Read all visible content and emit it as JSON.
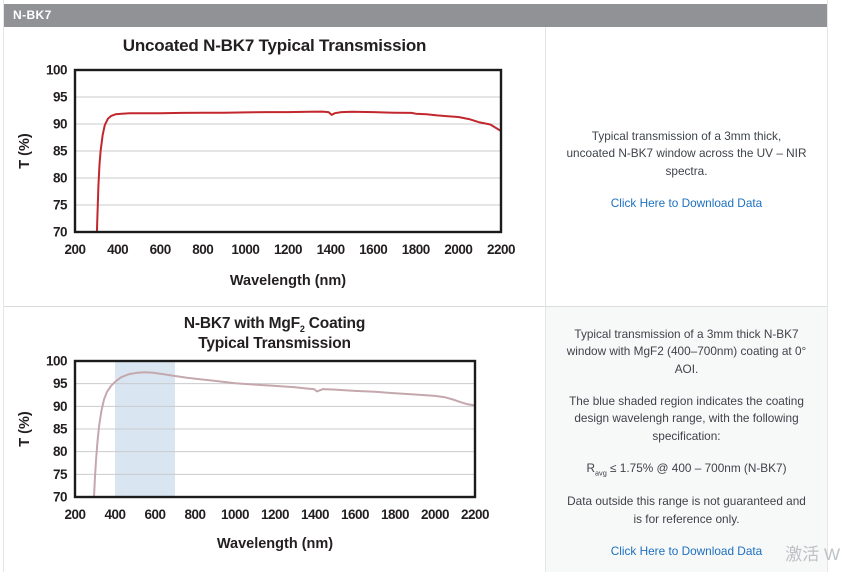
{
  "header": {
    "title": "N-BK7"
  },
  "sections": [
    {
      "description": "Typical transmission of a 3mm thick, uncoated N-BK7 window across the UV – NIR spectra.",
      "link_label": "Click Here to Download Data"
    },
    {
      "description_p1": "Typical transmission of a 3mm thick N-BK7 window with MgF2 (400–700nm) coating at 0° AOI.",
      "description_p2": "The blue shaded region indicates the coating design wavelengh range, with the following specification:",
      "spec": {
        "pre": "R",
        "sub": "avg",
        "post": " ≤ 1.75% @ 400 – 700nm (N-BK7)"
      },
      "description_p3": "Data outside this range is not guaranteed and is for reference only.",
      "link_label": "Click Here to Download Data"
    }
  ],
  "watermark": "激活 W",
  "chart_data": [
    {
      "type": "line",
      "title": "Uncoated N-BK7 Typical Transmission",
      "xlabel": "Wavelength (nm)",
      "ylabel": "T (%)",
      "xlim": [
        200,
        2200
      ],
      "ylim": [
        70,
        100
      ],
      "xticks": [
        200,
        400,
        600,
        800,
        1000,
        1200,
        1400,
        1600,
        1800,
        2000,
        2200
      ],
      "yticks": [
        70,
        75,
        80,
        85,
        90,
        95,
        100
      ],
      "grid": "horizontal",
      "legend": "none",
      "series": [
        {
          "name": "Uncoated N-BK7 transmission",
          "color": "#c2272d",
          "x": [
            303,
            306,
            310,
            315,
            320,
            330,
            340,
            355,
            370,
            390,
            420,
            460,
            520,
            600,
            700,
            800,
            900,
            1000,
            1100,
            1200,
            1300,
            1360,
            1390,
            1405,
            1420,
            1450,
            1500,
            1600,
            1700,
            1780,
            1800,
            1850,
            1900,
            1950,
            2000,
            2050,
            2100,
            2150,
            2200
          ],
          "y": [
            70,
            74,
            78.5,
            82.5,
            85,
            88,
            89.8,
            91.0,
            91.5,
            91.8,
            91.9,
            92.0,
            92.0,
            92.0,
            92.05,
            92.1,
            92.1,
            92.15,
            92.2,
            92.2,
            92.25,
            92.3,
            92.2,
            91.7,
            92.0,
            92.2,
            92.25,
            92.2,
            92.1,
            92.05,
            91.9,
            91.8,
            91.6,
            91.45,
            91.3,
            90.9,
            90.3,
            89.9,
            88.7
          ]
        }
      ]
    },
    {
      "type": "line",
      "title": "N-BK7 with MgF2 Coating Typical Transmission",
      "title_parts": {
        "pre": "N-BK7 with MgF",
        "sub": "2",
        "post": " Coating"
      },
      "title_line2": "Typical Transmission",
      "xlabel": "Wavelength (nm)",
      "ylabel": "T (%)",
      "xlim": [
        200,
        2200
      ],
      "ylim": [
        70,
        100
      ],
      "xticks": [
        200,
        400,
        600,
        800,
        1000,
        1200,
        1400,
        1600,
        1800,
        2000,
        2200
      ],
      "yticks": [
        70,
        75,
        80,
        85,
        90,
        95,
        100
      ],
      "grid": "horizontal",
      "legend": "none",
      "shaded_region": {
        "x": [
          400,
          700
        ],
        "color": "#d9e6f2",
        "label": "coating design wavelength range"
      },
      "series": [
        {
          "name": "N-BK7 with MgF2 coating transmission",
          "color": "#c5a8ae",
          "x": [
            295,
            300,
            305,
            312,
            320,
            332,
            345,
            360,
            380,
            400,
            430,
            470,
            510,
            550,
            590,
            640,
            700,
            760,
            820,
            900,
            1000,
            1100,
            1200,
            1300,
            1370,
            1395,
            1410,
            1440,
            1500,
            1600,
            1700,
            1800,
            1900,
            2000,
            2050,
            2090,
            2130,
            2160,
            2200
          ],
          "y": [
            70,
            74.5,
            78,
            82,
            85.5,
            89,
            91.5,
            93.2,
            94.5,
            95.4,
            96.4,
            97.1,
            97.4,
            97.5,
            97.4,
            97.1,
            96.7,
            96.3,
            96.0,
            95.6,
            95.1,
            94.8,
            94.5,
            94.2,
            93.9,
            93.8,
            93.3,
            93.8,
            93.7,
            93.4,
            93.2,
            92.9,
            92.6,
            92.3,
            92.0,
            91.5,
            90.9,
            90.5,
            90.2
          ]
        }
      ]
    }
  ]
}
